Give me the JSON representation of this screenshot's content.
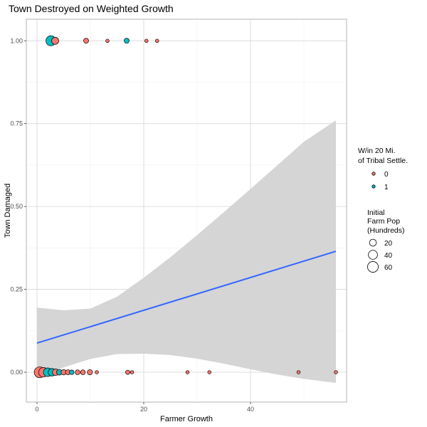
{
  "chart_data": {
    "type": "scatter",
    "title": "Town Destroyed on Weighted Growth",
    "xlabel": "Farmer Growth",
    "ylabel": "Town Damaged",
    "xlim": [
      -2,
      58
    ],
    "ylim": [
      -0.09,
      1.065
    ],
    "x_ticks": [
      0,
      20,
      40
    ],
    "x_tick_labels": [
      "0",
      "20",
      "40"
    ],
    "y_ticks": [
      0,
      0.25,
      0.5,
      0.75,
      1.0
    ],
    "y_tick_labels": [
      "0.00",
      "0.25",
      "0.50",
      "0.75",
      "1.00"
    ],
    "grid": true,
    "legend_position": "right",
    "colors": {
      "group_0": "#F8766D",
      "group_1": "#00BFC4",
      "fit_line": "#3366FF",
      "ribbon": "#d3d3d3"
    },
    "legend_color": {
      "title": [
        "W/in 20 Mi.",
        "of Tribal Settle."
      ],
      "entries": [
        "0",
        "1"
      ]
    },
    "legend_size": {
      "title": [
        "Initial",
        "Farm Pop",
        "(Hundreds)"
      ],
      "entries": [
        "20",
        "40",
        "60"
      ],
      "values": [
        20,
        40,
        60
      ]
    },
    "points": [
      {
        "x": 2.6,
        "y": 1,
        "group": 1,
        "size": 50
      },
      {
        "x": 3.4,
        "y": 1,
        "group": 0,
        "size": 22
      },
      {
        "x": 9.2,
        "y": 1,
        "group": 0,
        "size": 8
      },
      {
        "x": 13.2,
        "y": 1,
        "group": 0,
        "size": 2
      },
      {
        "x": 16.8,
        "y": 1,
        "group": 1,
        "size": 8
      },
      {
        "x": 20.5,
        "y": 1,
        "group": 0,
        "size": 2
      },
      {
        "x": 22.5,
        "y": 1,
        "group": 0,
        "size": 2
      },
      {
        "x": 0.5,
        "y": 0,
        "group": 0,
        "size": 62
      },
      {
        "x": 1.2,
        "y": 0,
        "group": 0,
        "size": 45
      },
      {
        "x": 2.0,
        "y": 0,
        "group": 1,
        "size": 35
      },
      {
        "x": 2.8,
        "y": 0,
        "group": 1,
        "size": 25
      },
      {
        "x": 3.5,
        "y": 0,
        "group": 0,
        "size": 18
      },
      {
        "x": 4.2,
        "y": 0,
        "group": 1,
        "size": 12
      },
      {
        "x": 5.0,
        "y": 0,
        "group": 0,
        "size": 10
      },
      {
        "x": 5.8,
        "y": 0,
        "group": 0,
        "size": 8
      },
      {
        "x": 6.5,
        "y": 0,
        "group": 1,
        "size": 6
      },
      {
        "x": 7.6,
        "y": 0,
        "group": 0,
        "size": 7
      },
      {
        "x": 8.6,
        "y": 0,
        "group": 0,
        "size": 7
      },
      {
        "x": 9.9,
        "y": 0,
        "group": 0,
        "size": 9
      },
      {
        "x": 11.2,
        "y": 0,
        "group": 0,
        "size": 2
      },
      {
        "x": 17.0,
        "y": 0,
        "group": 0,
        "size": 5
      },
      {
        "x": 17.8,
        "y": 0,
        "group": 0,
        "size": 2
      },
      {
        "x": 28.2,
        "y": 0,
        "group": 0,
        "size": 2
      },
      {
        "x": 32.3,
        "y": 0,
        "group": 0,
        "size": 2
      },
      {
        "x": 49.0,
        "y": 0,
        "group": 0,
        "size": 2
      },
      {
        "x": 56.0,
        "y": 0,
        "group": 0,
        "size": 2
      }
    ],
    "fit_line": {
      "x": [
        0,
        56
      ],
      "y": [
        0.088,
        0.365
      ]
    },
    "confidence_band": {
      "x": [
        0,
        5,
        10,
        15,
        20,
        25,
        30,
        35,
        40,
        45,
        50,
        56
      ],
      "upper": [
        0.195,
        0.187,
        0.192,
        0.228,
        0.285,
        0.347,
        0.414,
        0.483,
        0.553,
        0.624,
        0.695,
        0.76
      ],
      "lower": [
        -0.018,
        0.015,
        0.04,
        0.055,
        0.056,
        0.052,
        0.041,
        0.026,
        0.009,
        -0.007,
        -0.02,
        -0.032
      ]
    }
  }
}
